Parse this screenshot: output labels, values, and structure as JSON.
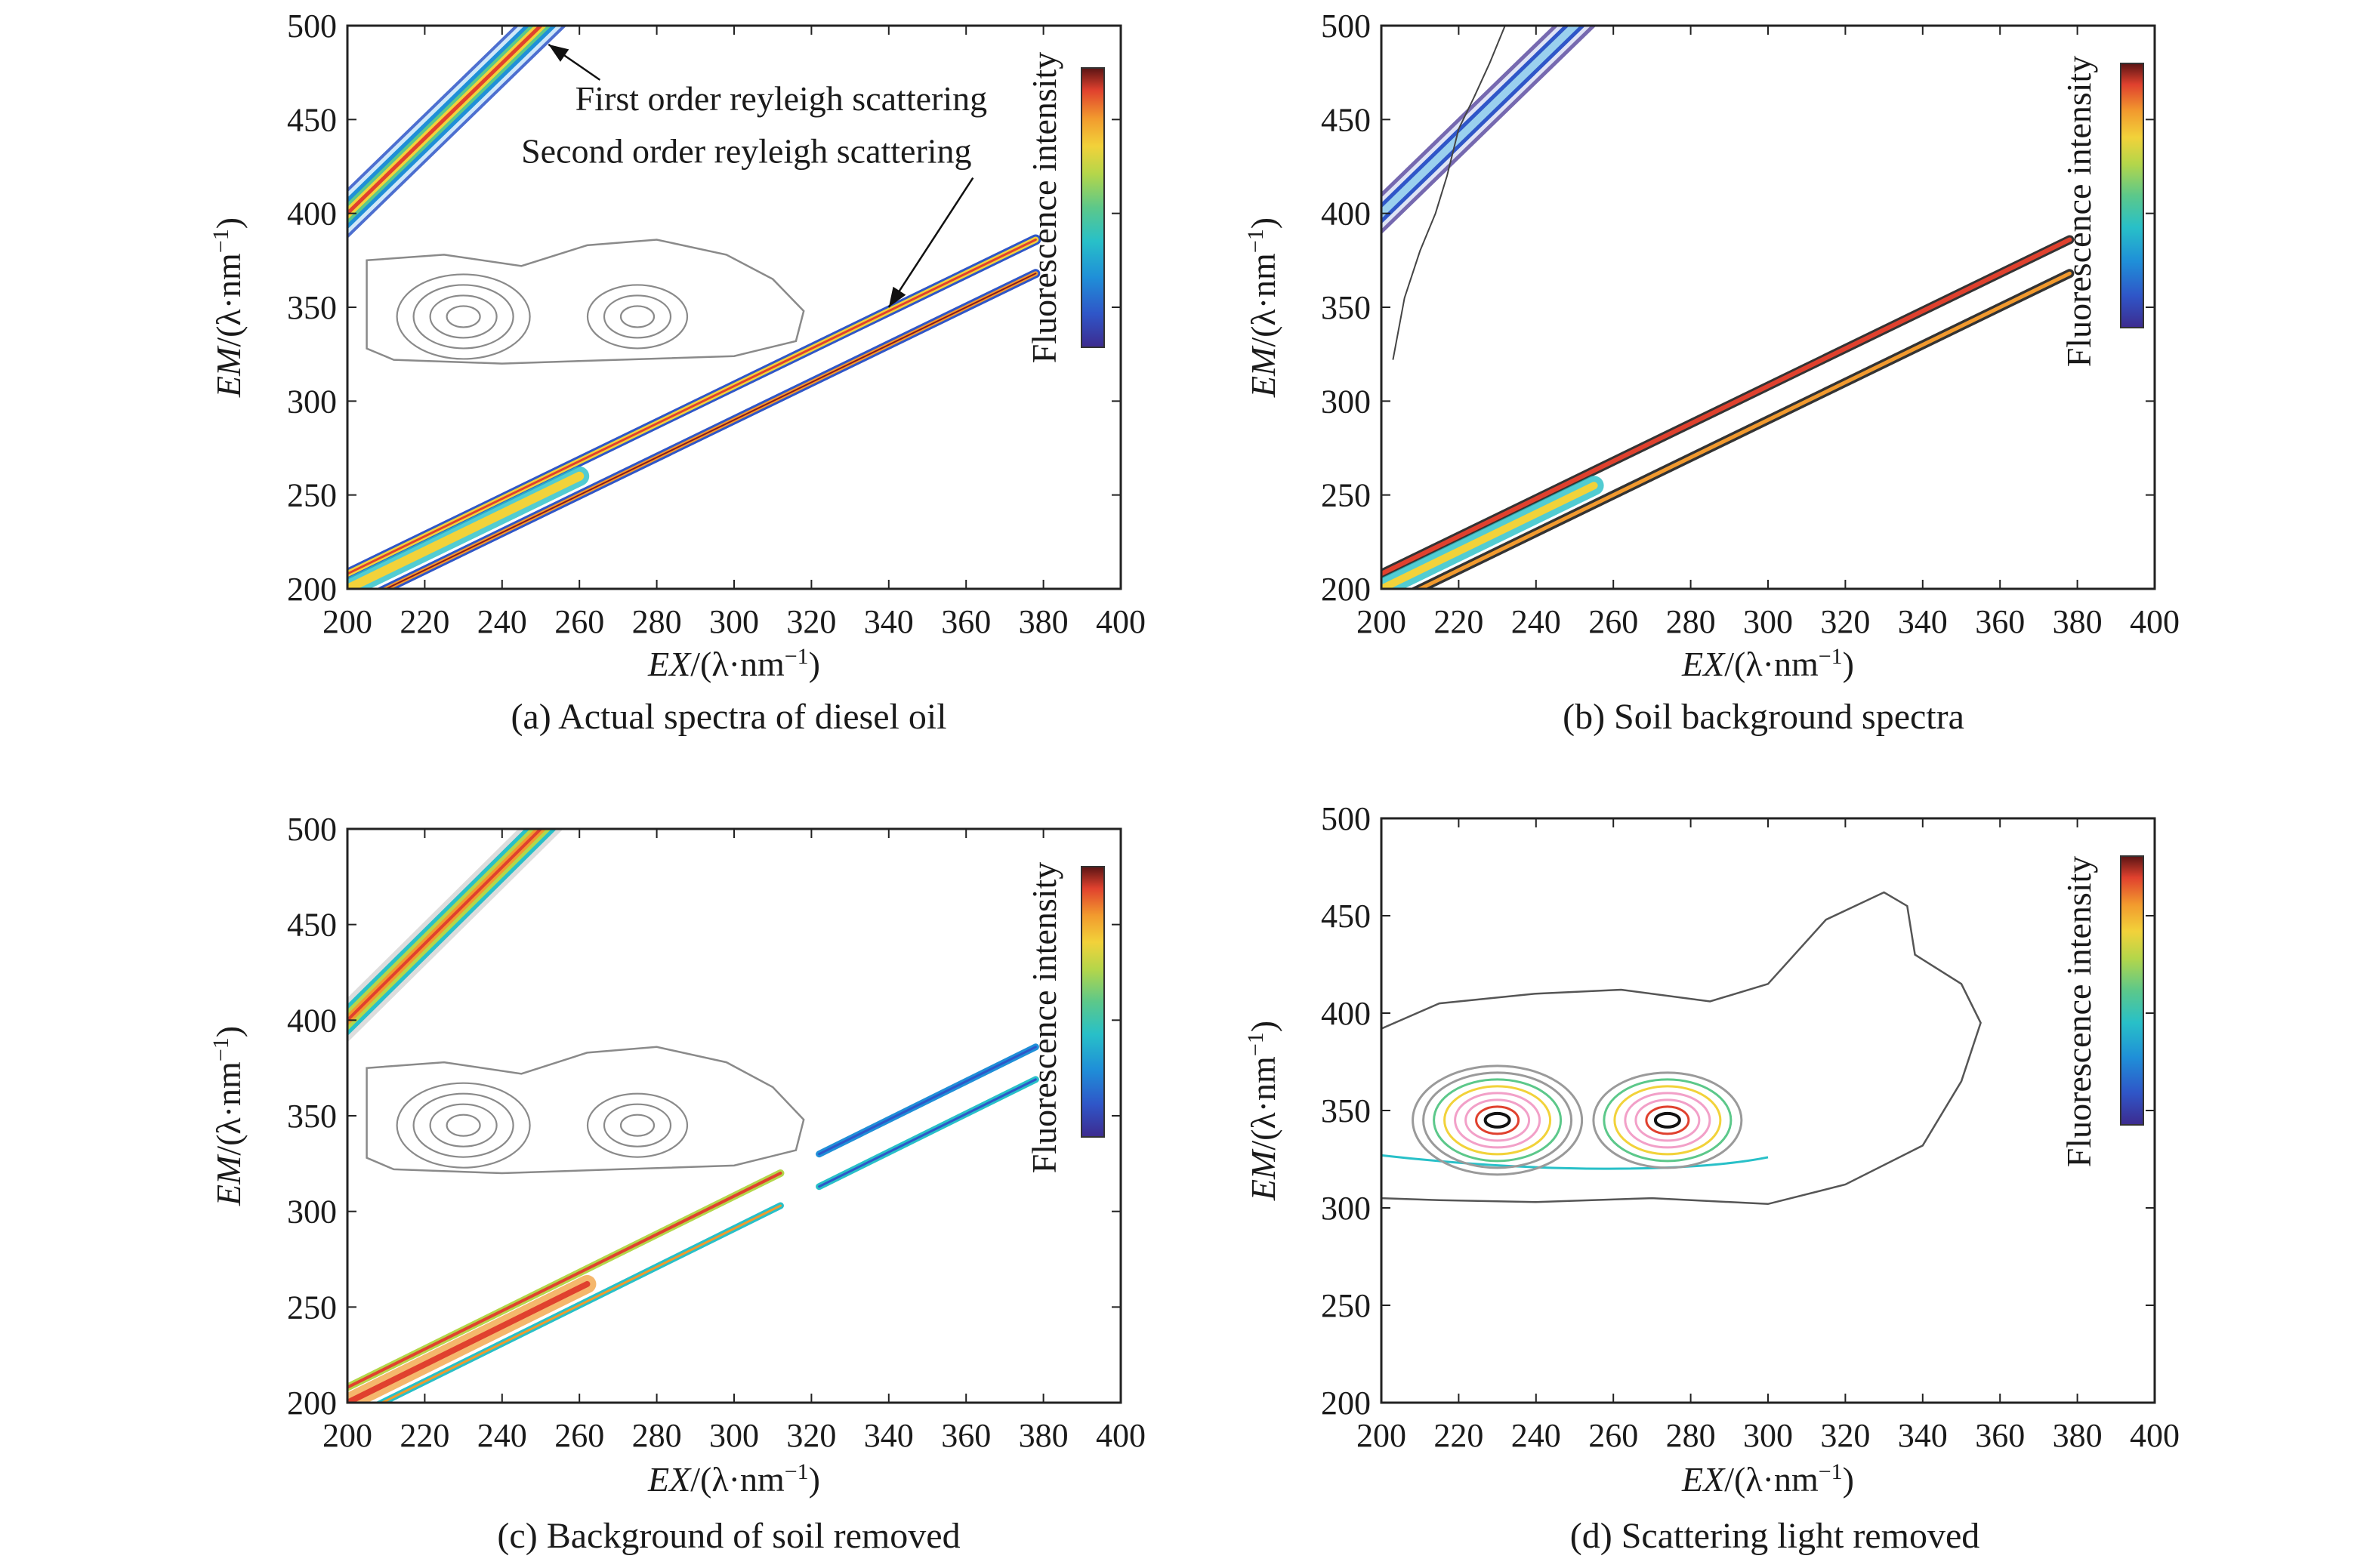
{
  "chart_data": [
    {
      "type": "contour",
      "caption": "(a) Actual spectra of diesel oil",
      "xlabel": {
        "main": "EX",
        "unit_open": "/(λ·nm",
        "sup": "−1",
        "unit_close": ")"
      },
      "ylabel": {
        "main": "EM",
        "unit_open": "/(λ·nm",
        "sup": "−1",
        "unit_close": ")"
      },
      "xlim": [
        200,
        400
      ],
      "ylim": [
        200,
        500
      ],
      "xticks": [
        "200",
        "220",
        "240",
        "260",
        "280",
        "300",
        "320",
        "340",
        "360",
        "380",
        "400"
      ],
      "yticks": [
        "200",
        "250",
        "300",
        "350",
        "400",
        "450",
        "500"
      ],
      "colorbar_label": "Fluorescence intensity",
      "scatter_bands": {
        "first_order": true,
        "second_order": true,
        "style": "full"
      },
      "peaks": [
        {
          "ex": 230,
          "em": 345,
          "rings": 4,
          "colored": false
        },
        {
          "ex": 275,
          "em": 345,
          "rings": 3,
          "colored": false
        }
      ],
      "annotations": [
        {
          "text": "First order reyleigh scattering",
          "ex": 195,
          "em": 455,
          "points_to": {
            "ex": 252,
            "em": 490
          }
        },
        {
          "text": "Second order reyleigh scattering",
          "ex": 186,
          "em": 427,
          "points_to": {
            "ex": 340,
            "em": 350
          }
        }
      ]
    },
    {
      "type": "contour",
      "caption": "(b) Soil background spectra",
      "xlabel": {
        "main": "EX",
        "unit_open": "/(λ·nm",
        "sup": "−1",
        "unit_close": ")"
      },
      "ylabel": {
        "main": "EM",
        "unit_open": "/(λ·nm",
        "sup": "−1",
        "unit_close": ")"
      },
      "xlim": [
        200,
        400
      ],
      "ylim": [
        200,
        500
      ],
      "xticks": [
        "200",
        "220",
        "240",
        "260",
        "280",
        "300",
        "320",
        "340",
        "360",
        "380",
        "400"
      ],
      "yticks": [
        "200",
        "250",
        "300",
        "350",
        "400",
        "450",
        "500"
      ],
      "colorbar_label": "Fluorescence intensity",
      "scatter_bands": {
        "first_order": true,
        "second_order": true,
        "style": "narrow"
      },
      "peaks": []
    },
    {
      "type": "contour",
      "caption": "(c) Background of soil removed",
      "xlabel": {
        "main": "EX",
        "unit_open": "/(λ·nm",
        "sup": "−1",
        "unit_close": ")"
      },
      "ylabel": {
        "main": "EM",
        "unit_open": "/(λ·nm",
        "sup": "−1",
        "unit_close": ")"
      },
      "xlim": [
        200,
        400
      ],
      "ylim": [
        200,
        500
      ],
      "xticks": [
        "200",
        "220",
        "240",
        "260",
        "280",
        "300",
        "320",
        "340",
        "360",
        "380",
        "400"
      ],
      "yticks": [
        "200",
        "250",
        "300",
        "350",
        "400",
        "450",
        "500"
      ],
      "colorbar_label": "Fluorescence intensity",
      "scatter_bands": {
        "first_order": true,
        "second_order": true,
        "style": "residual"
      },
      "peaks": [
        {
          "ex": 230,
          "em": 345,
          "rings": 4,
          "colored": false
        },
        {
          "ex": 275,
          "em": 345,
          "rings": 3,
          "colored": false
        }
      ]
    },
    {
      "type": "contour",
      "caption": "(d) Scattering light removed",
      "xlabel": {
        "main": "EX",
        "unit_open": "/(λ·nm",
        "sup": "−1",
        "unit_close": ")"
      },
      "ylabel": {
        "main": "EM",
        "unit_open": "/(λ·nm",
        "sup": "−1",
        "unit_close": ")"
      },
      "xlim": [
        200,
        400
      ],
      "ylim": [
        200,
        500
      ],
      "xticks": [
        "200",
        "220",
        "240",
        "260",
        "280",
        "300",
        "320",
        "340",
        "360",
        "380",
        "400"
      ],
      "yticks": [
        "200",
        "250",
        "300",
        "350",
        "400",
        "450",
        "500"
      ],
      "colorbar_label": "Fluorescence intensity",
      "scatter_bands": {
        "first_order": false,
        "second_order": false,
        "style": "none"
      },
      "peaks": [
        {
          "ex": 230,
          "em": 345,
          "rings": 8,
          "colored": true
        },
        {
          "ex": 274,
          "em": 345,
          "rings": 7,
          "colored": true
        }
      ]
    }
  ],
  "colormap": [
    "#3d2b8f",
    "#2f56c8",
    "#1f8fd8",
    "#28c0c8",
    "#5cc88a",
    "#b4d64a",
    "#f2d23a",
    "#f29a2e",
    "#e0412e",
    "#8c1a1a"
  ],
  "contour_gray": "#8a8a8a"
}
